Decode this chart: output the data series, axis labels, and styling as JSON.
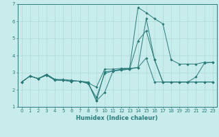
{
  "xlabel": "Humidex (Indice chaleur)",
  "bg_color": "#c8ecec",
  "grid_color": "#b0d8d8",
  "line_color": "#2a7a7a",
  "xlim": [
    -0.5,
    23.5
  ],
  "ylim": [
    1,
    7
  ],
  "yticks": [
    1,
    2,
    3,
    4,
    5,
    6,
    7
  ],
  "xticks": [
    0,
    1,
    2,
    3,
    4,
    5,
    6,
    7,
    8,
    9,
    10,
    11,
    12,
    13,
    14,
    15,
    16,
    17,
    18,
    19,
    20,
    21,
    22,
    23
  ],
  "series": [
    {
      "x": [
        0,
        1,
        2,
        3,
        4,
        5,
        6,
        7,
        8,
        9,
        10,
        11,
        12,
        13,
        14,
        15,
        16,
        17,
        18,
        19,
        20,
        21,
        22,
        23
      ],
      "y": [
        2.45,
        2.8,
        2.65,
        2.85,
        2.6,
        2.55,
        2.5,
        2.5,
        2.45,
        1.35,
        1.85,
        3.1,
        3.2,
        3.25,
        6.8,
        6.5,
        6.15,
        5.85,
        3.75,
        3.5,
        3.5,
        3.5,
        3.6,
        3.6
      ]
    },
    {
      "x": [
        0,
        1,
        2,
        3,
        4,
        5,
        6,
        7,
        8,
        9,
        10,
        11,
        12,
        13,
        14,
        15,
        16,
        17,
        18,
        19,
        20,
        21,
        22,
        23
      ],
      "y": [
        2.45,
        2.8,
        2.65,
        2.85,
        2.55,
        2.55,
        2.5,
        2.5,
        2.4,
        2.15,
        3.2,
        3.2,
        3.25,
        3.25,
        3.3,
        6.15,
        3.75,
        2.45,
        2.45,
        2.45,
        2.45,
        2.75,
        3.55,
        3.6
      ]
    },
    {
      "x": [
        0,
        1,
        2,
        3,
        4,
        5,
        6,
        7,
        8,
        9,
        10,
        11,
        12,
        13,
        14,
        15,
        16,
        17,
        18,
        19,
        20,
        21,
        22,
        23
      ],
      "y": [
        2.45,
        2.8,
        2.65,
        2.9,
        2.6,
        2.6,
        2.55,
        2.5,
        2.35,
        1.55,
        2.95,
        3.1,
        3.15,
        3.2,
        4.85,
        5.45,
        3.75,
        2.45,
        2.45,
        2.45,
        2.45,
        2.45,
        2.45,
        2.45
      ]
    },
    {
      "x": [
        0,
        1,
        2,
        3,
        4,
        5,
        6,
        7,
        8,
        9,
        10,
        11,
        12,
        13,
        14,
        15,
        16,
        17,
        18,
        19,
        20,
        21,
        22,
        23
      ],
      "y": [
        2.45,
        2.8,
        2.65,
        2.9,
        2.6,
        2.55,
        2.5,
        2.5,
        2.4,
        1.35,
        3.05,
        3.1,
        3.15,
        3.2,
        3.3,
        3.85,
        2.45,
        2.45,
        2.45,
        2.45,
        2.45,
        2.45,
        2.45,
        2.45
      ]
    }
  ]
}
